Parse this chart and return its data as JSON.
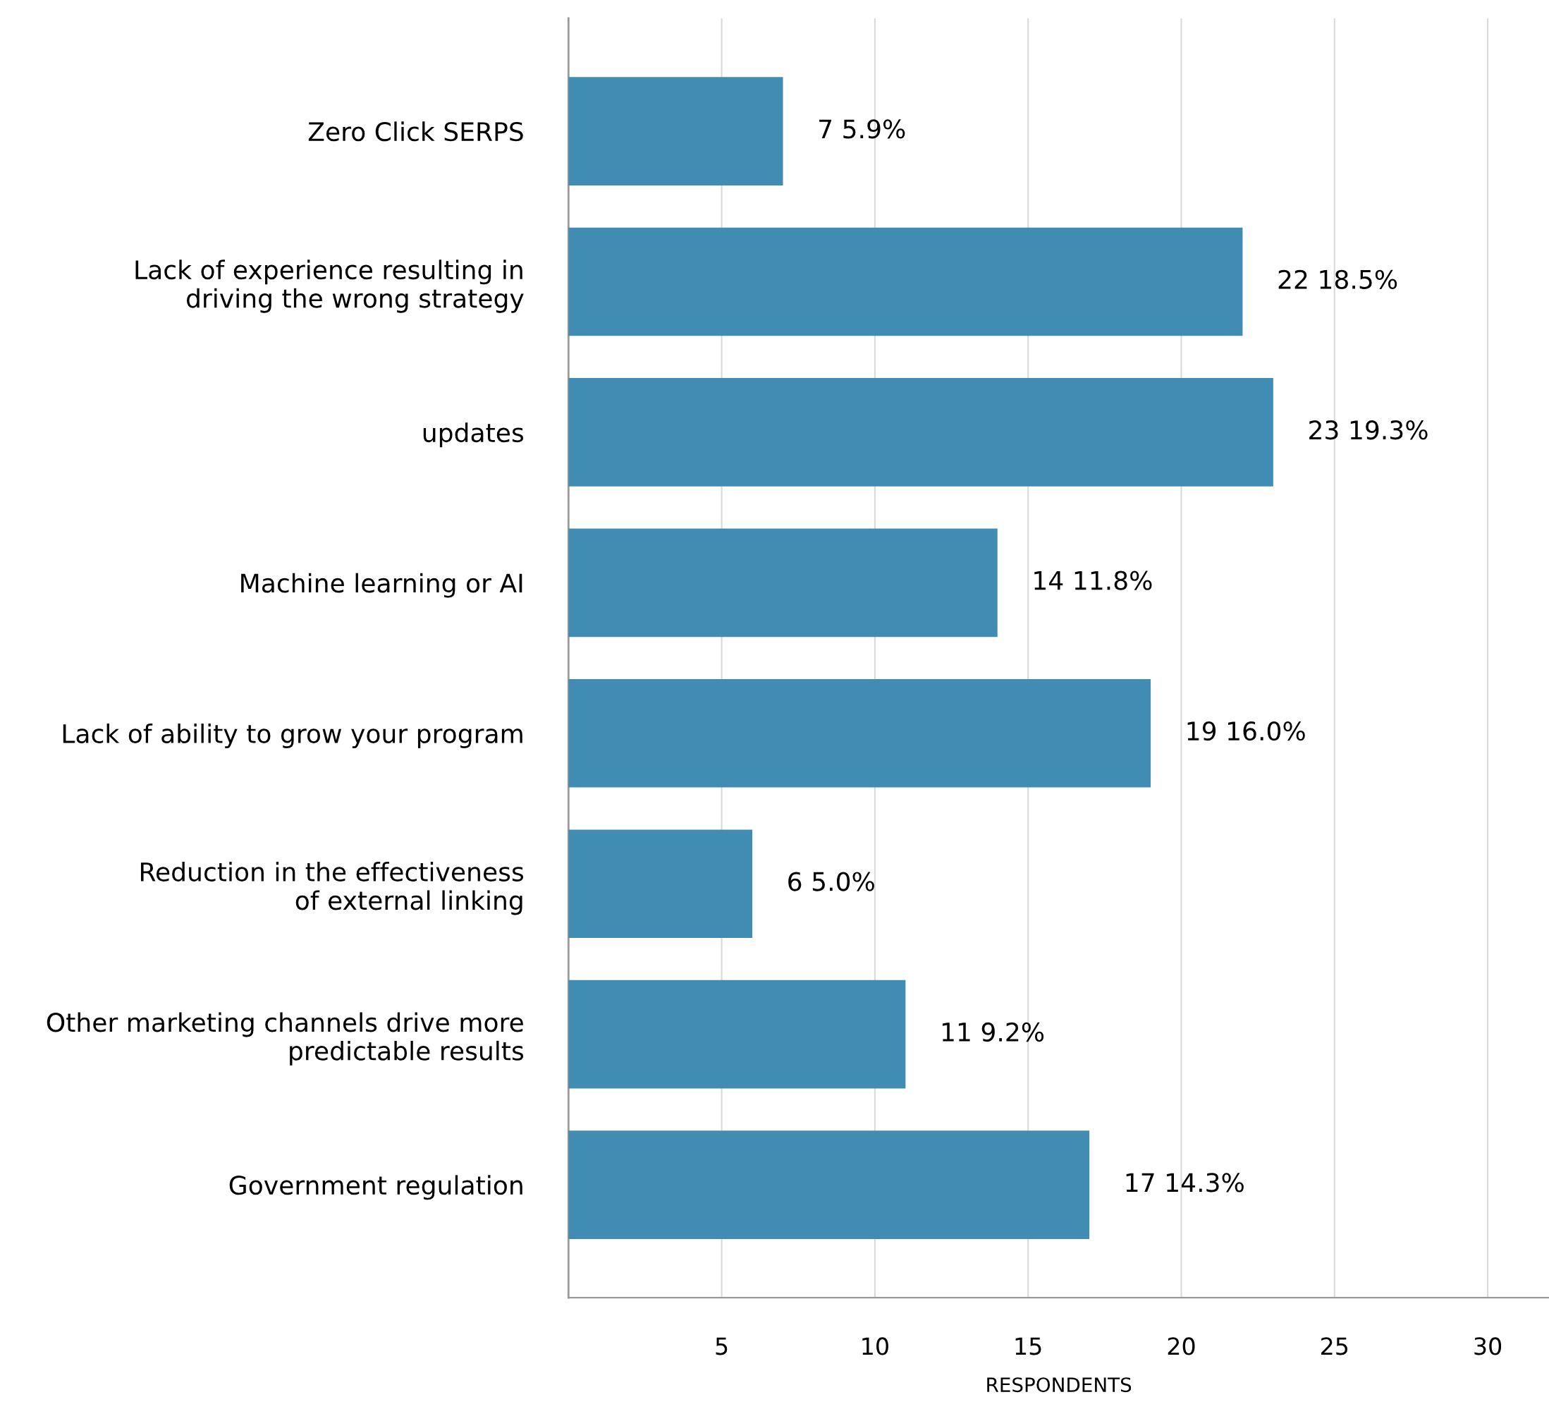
{
  "chart_data": {
    "type": "bar",
    "orientation": "horizontal",
    "xlabel": "RESPONDENTS",
    "categories": [
      "Zero Click SERPS",
      "Lack of experience resulting in\ndriving the wrong strategy",
      "updates",
      "Machine learning or AI",
      "Lack of ability to grow your program",
      "Reduction in the effectiveness\nof external linking",
      "Other marketing channels drive more\npredictable results",
      "Government regulation"
    ],
    "values": [
      7,
      22,
      23,
      14,
      19,
      6,
      11,
      17
    ],
    "value_labels": [
      "7 5.9%",
      "22 18.5%",
      "23 19.3%",
      "14 11.8%",
      "19 16.0%",
      "6 5.0%",
      "11 9.2%",
      "17 14.3%"
    ],
    "color": "#408cb2",
    "xlim": [
      0,
      32
    ],
    "xticks": [
      5,
      10,
      15,
      20,
      25,
      30
    ],
    "grid": "x",
    "legend": false
  }
}
